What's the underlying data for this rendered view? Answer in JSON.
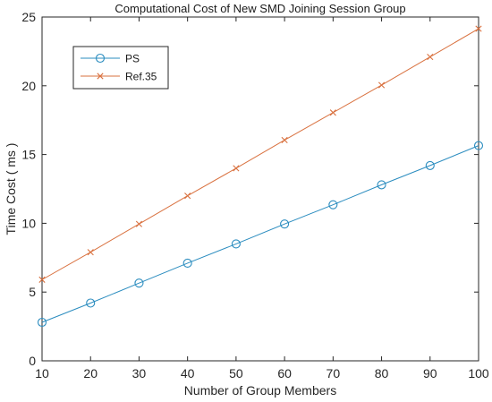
{
  "chart_data": {
    "type": "line",
    "title": "Computational Cost of New SMD Joining Session Group",
    "xlabel": "Number of Group Members",
    "ylabel": "Time Cost ( ms )",
    "x": [
      10,
      20,
      30,
      40,
      50,
      60,
      70,
      80,
      90,
      100
    ],
    "xlim": [
      10,
      100
    ],
    "ylim": [
      0,
      25
    ],
    "xticks": [
      "10",
      "20",
      "30",
      "40",
      "50",
      "60",
      "70",
      "80",
      "90",
      "100"
    ],
    "yticks": [
      "0",
      "5",
      "10",
      "15",
      "20",
      "25"
    ],
    "grid": false,
    "legend_position": "top-left",
    "series": [
      {
        "name": "PS",
        "marker": "circle",
        "color": "#2a8cbf",
        "values": [
          2.8,
          4.2,
          5.65,
          7.1,
          8.5,
          9.95,
          11.35,
          12.8,
          14.2,
          15.65
        ]
      },
      {
        "name": "Ref.35",
        "marker": "x",
        "color": "#d9713f",
        "values": [
          5.9,
          7.9,
          9.95,
          12.0,
          14.0,
          16.05,
          18.05,
          20.05,
          22.1,
          24.15
        ]
      }
    ]
  }
}
